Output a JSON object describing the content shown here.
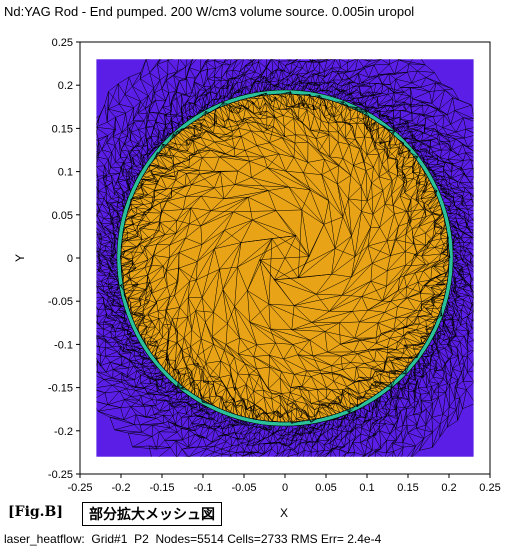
{
  "title": "Nd:YAG Rod - End pumped.  200 W/cm3 volume source. 0.005in uropol",
  "chart_data": {
    "type": "mesh",
    "xlabel": "X",
    "ylabel": "Y",
    "xlim": [
      -0.25,
      0.25
    ],
    "ylim": [
      -0.25,
      0.25
    ],
    "domain": {
      "x": [
        -0.23,
        0.23
      ],
      "y": [
        -0.23,
        0.23
      ]
    },
    "rod": {
      "center": [
        0,
        0
      ],
      "radius": 0.2
    },
    "coating": {
      "outer_radius": 0.205
    },
    "x_ticks": [
      "-0.25",
      "-0.2",
      "-0.15",
      "-0.1",
      "-0.05",
      "0",
      "0.05",
      "0.1",
      "0.15",
      "0.2",
      "0.25"
    ],
    "y_ticks": [
      "0.25",
      "0.2",
      "0.15",
      "0.1",
      "0.05",
      "0",
      "-0.05",
      "-0.1",
      "-0.15",
      "-0.2",
      "-0.25"
    ],
    "colors": {
      "background_region": "#5a1ee6",
      "rod": "#e8a317",
      "coating": "#2cc09a",
      "mesh_line": "#000000"
    }
  },
  "figure": {
    "label": "[Fig.B]",
    "caption": "部分拡大メッシュ図"
  },
  "status": {
    "app": "laser_heatflow:",
    "grid": "Grid#1",
    "p": "P2",
    "nodes": "Nodes=5514",
    "cells": "Cells=2733",
    "rms": "RMS Err= 2.4e-4"
  }
}
